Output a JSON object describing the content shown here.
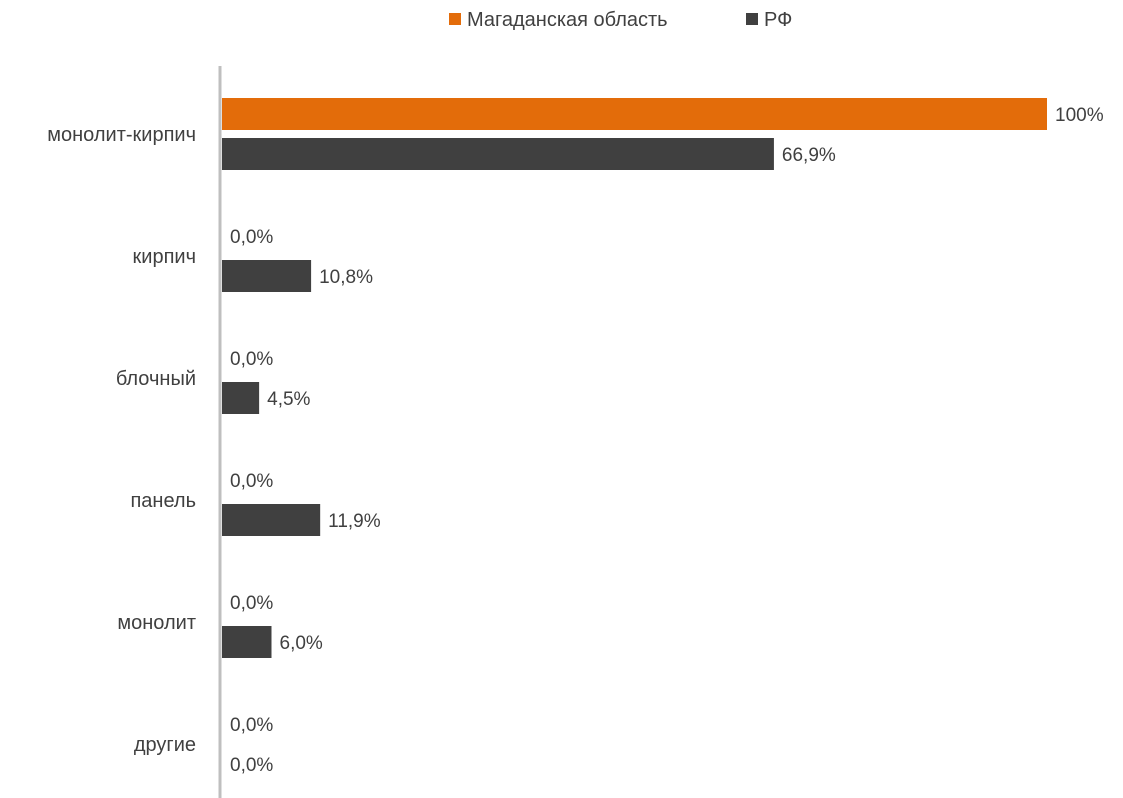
{
  "chart_data": {
    "type": "bar",
    "orientation": "horizontal",
    "legend_position": "top",
    "grid": false,
    "xlim": [
      0,
      100
    ],
    "categories": [
      "монолит-кирпич",
      "кирпич",
      "блочный",
      "панель",
      "монолит",
      "другие"
    ],
    "series": [
      {
        "name": "Магаданская область",
        "color": "#E36C0A",
        "values": [
          100,
          0,
          0,
          0,
          0,
          0
        ],
        "labels": [
          "100%",
          "0,0%",
          "0,0%",
          "0,0%",
          "0,0%",
          "0,0%"
        ]
      },
      {
        "name": "РФ",
        "color": "#404040",
        "values": [
          66.9,
          10.8,
          4.5,
          11.9,
          6.0,
          0
        ],
        "labels": [
          "66,9%",
          "10,8%",
          "4,5%",
          "11,9%",
          "6,0%",
          "0,0%"
        ]
      }
    ]
  }
}
